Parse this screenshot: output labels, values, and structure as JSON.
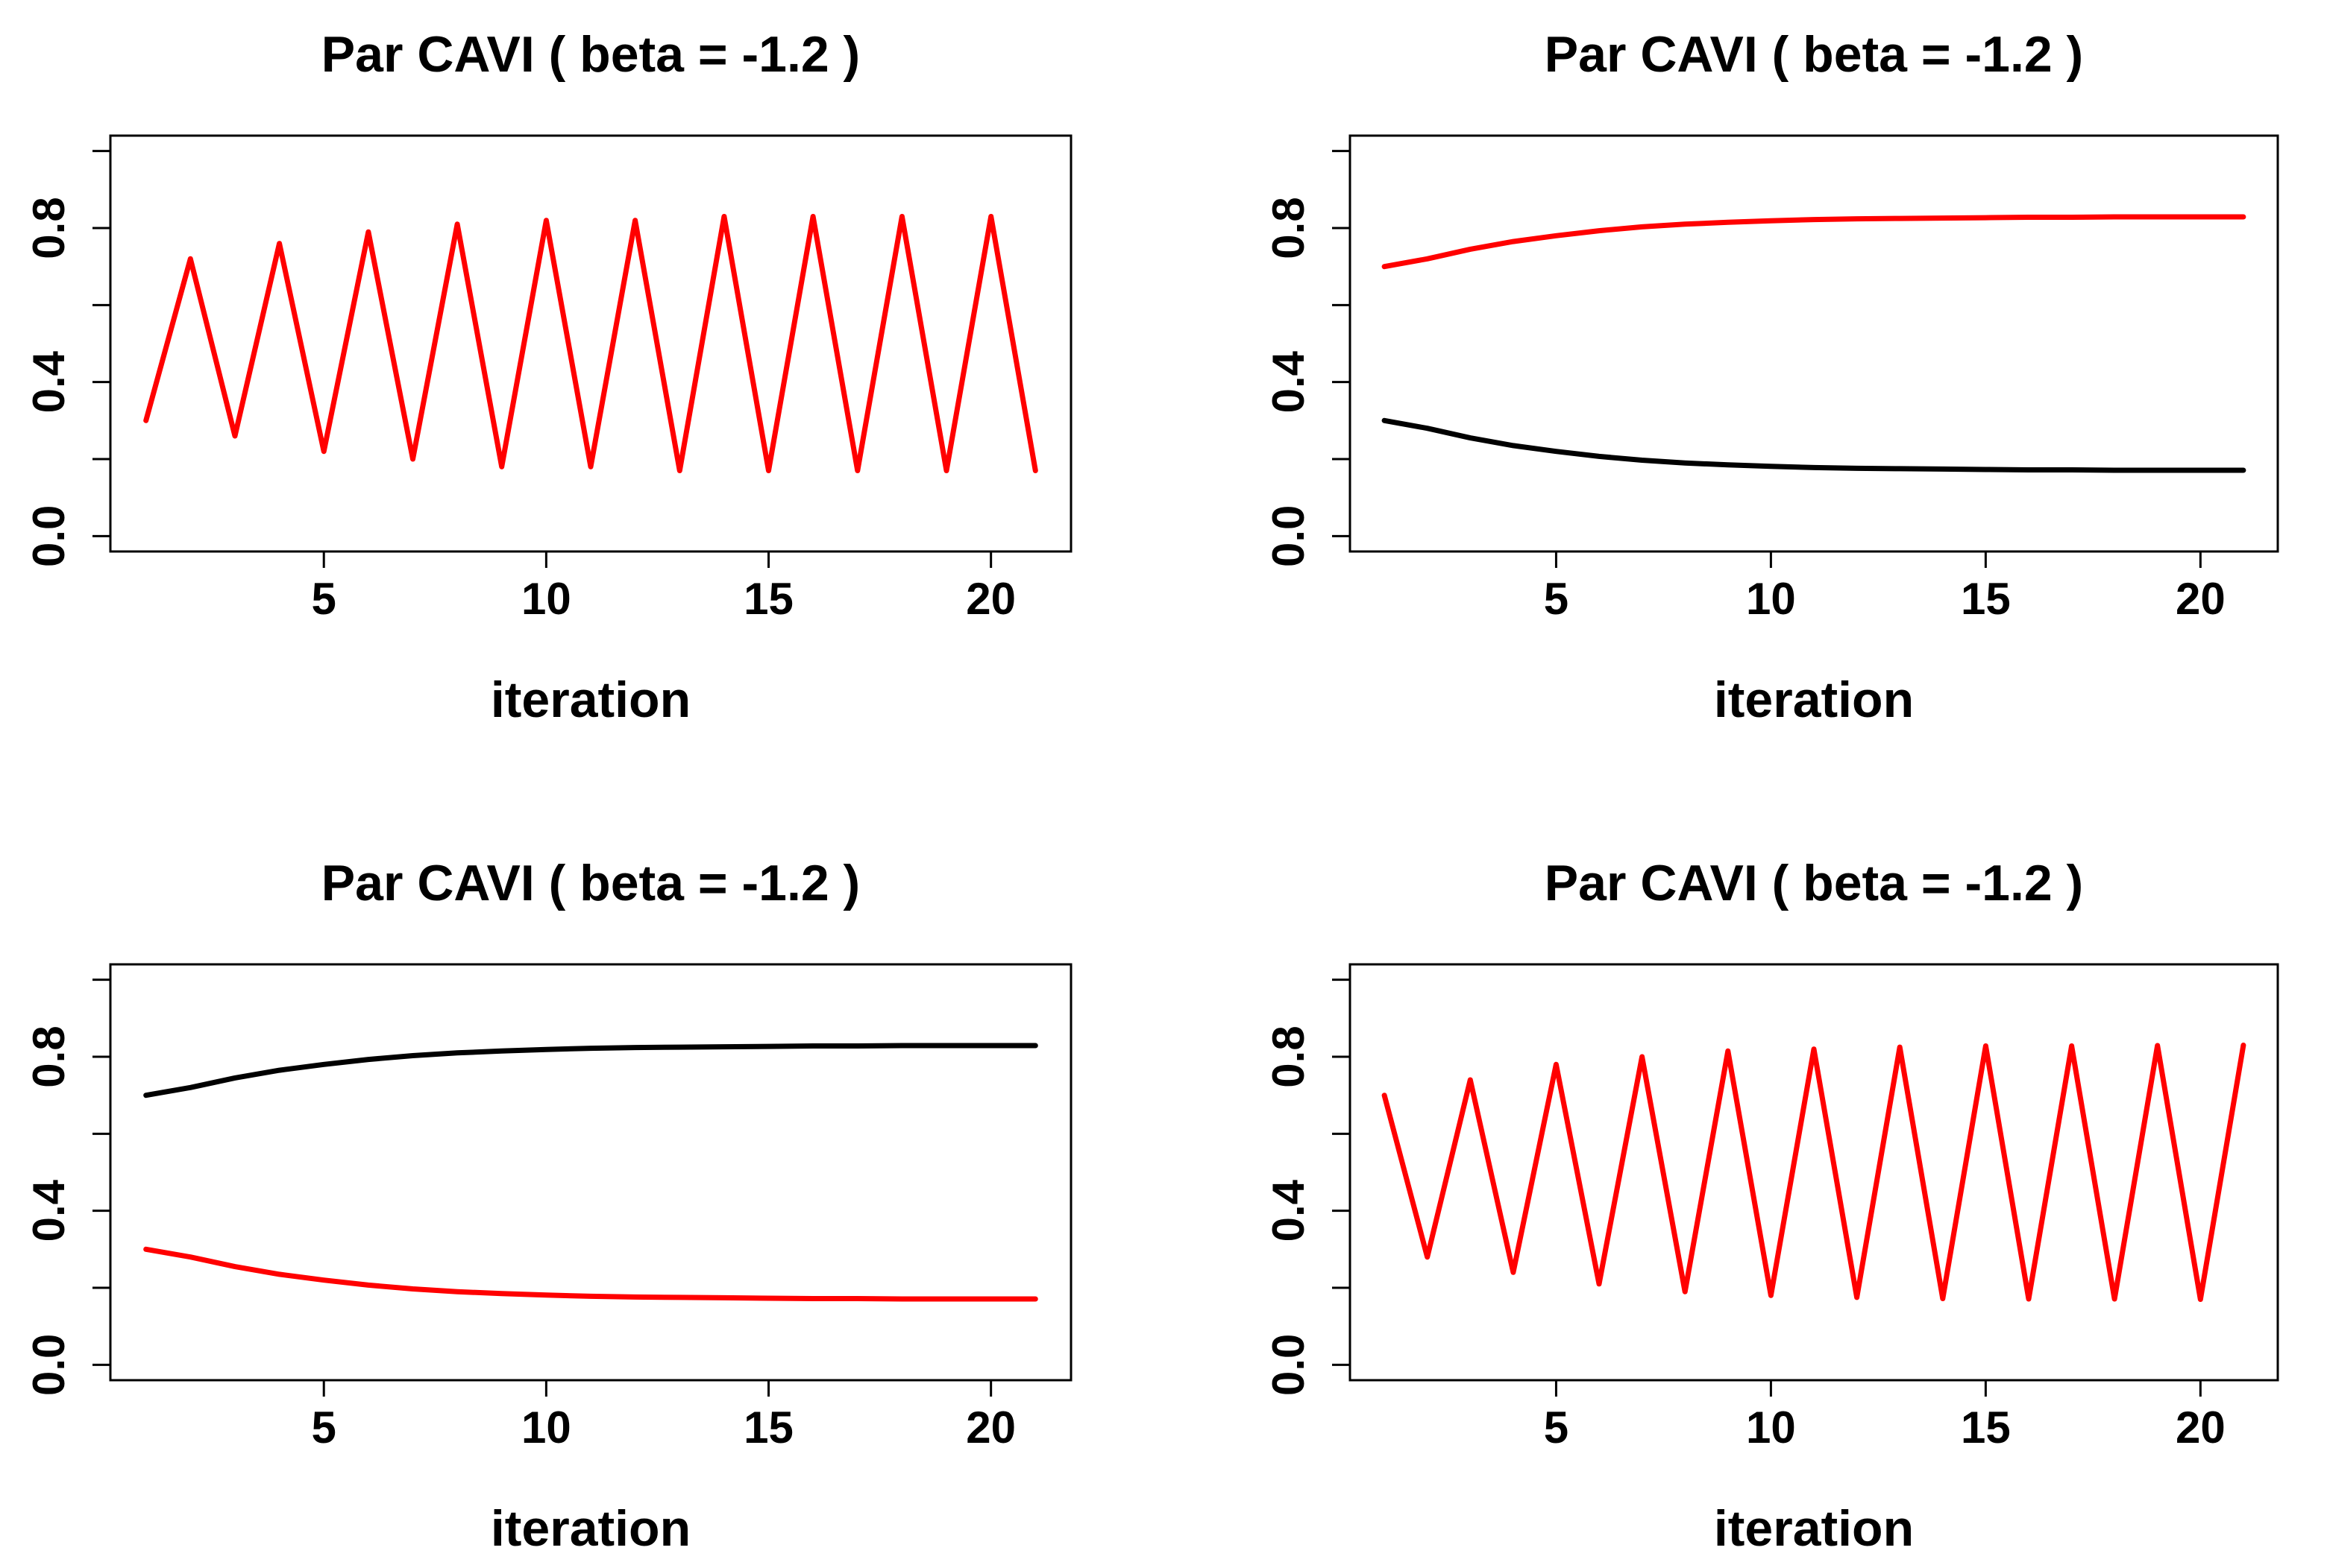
{
  "chart_data": [
    {
      "type": "line",
      "title": "Par CAVI ( beta =  -1.2 )",
      "xlabel": "iteration",
      "ylabel": "",
      "xlim": [
        0.2,
        21.8
      ],
      "ylim": [
        -0.04,
        1.04
      ],
      "x_ticks": [
        5,
        10,
        15,
        20
      ],
      "y_ticks": [
        0.0,
        0.4,
        0.8
      ],
      "y_minor_ticks": [
        0.0,
        0.2,
        0.4,
        0.6,
        0.8,
        1.0
      ],
      "x": [
        1,
        2,
        3,
        4,
        5,
        6,
        7,
        8,
        9,
        10,
        11,
        12,
        13,
        14,
        15,
        16,
        17,
        18,
        19,
        20,
        21
      ],
      "series": [
        {
          "color": "#ff0000",
          "values": [
            0.3,
            0.72,
            0.26,
            0.76,
            0.22,
            0.79,
            0.2,
            0.81,
            0.18,
            0.82,
            0.18,
            0.82,
            0.17,
            0.83,
            0.17,
            0.83,
            0.17,
            0.83,
            0.17,
            0.83,
            0.17
          ]
        }
      ]
    },
    {
      "type": "line",
      "title": "Par CAVI ( beta =  -1.2 )",
      "xlabel": "iteration",
      "ylabel": "",
      "xlim": [
        0.2,
        21.8
      ],
      "ylim": [
        -0.04,
        1.04
      ],
      "x_ticks": [
        5,
        10,
        15,
        20
      ],
      "y_ticks": [
        0.0,
        0.4,
        0.8
      ],
      "y_minor_ticks": [
        0.0,
        0.2,
        0.4,
        0.6,
        0.8,
        1.0
      ],
      "x": [
        1,
        2,
        3,
        4,
        5,
        6,
        7,
        8,
        9,
        10,
        11,
        12,
        13,
        14,
        15,
        16,
        17,
        18,
        19,
        20,
        21
      ],
      "series": [
        {
          "color": "#ff0000",
          "values": [
            0.7,
            0.72,
            0.745,
            0.765,
            0.78,
            0.793,
            0.803,
            0.81,
            0.815,
            0.819,
            0.822,
            0.824,
            0.825,
            0.826,
            0.827,
            0.828,
            0.828,
            0.829,
            0.829,
            0.829,
            0.829
          ]
        },
        {
          "color": "#000000",
          "values": [
            0.3,
            0.28,
            0.255,
            0.235,
            0.22,
            0.207,
            0.197,
            0.19,
            0.185,
            0.181,
            0.178,
            0.176,
            0.175,
            0.174,
            0.173,
            0.172,
            0.172,
            0.171,
            0.171,
            0.171,
            0.171
          ]
        }
      ]
    },
    {
      "type": "line",
      "title": "Par CAVI ( beta =  -1.2 )",
      "xlabel": "iteration",
      "ylabel": "",
      "xlim": [
        0.2,
        21.8
      ],
      "ylim": [
        -0.04,
        1.04
      ],
      "x_ticks": [
        5,
        10,
        15,
        20
      ],
      "y_ticks": [
        0.0,
        0.4,
        0.8
      ],
      "y_minor_ticks": [
        0.0,
        0.2,
        0.4,
        0.6,
        0.8,
        1.0
      ],
      "x": [
        1,
        2,
        3,
        4,
        5,
        6,
        7,
        8,
        9,
        10,
        11,
        12,
        13,
        14,
        15,
        16,
        17,
        18,
        19,
        20,
        21
      ],
      "series": [
        {
          "color": "#000000",
          "values": [
            0.7,
            0.72,
            0.745,
            0.765,
            0.78,
            0.793,
            0.803,
            0.81,
            0.815,
            0.819,
            0.822,
            0.824,
            0.825,
            0.826,
            0.827,
            0.828,
            0.828,
            0.829,
            0.829,
            0.829,
            0.829
          ]
        },
        {
          "color": "#ff0000",
          "values": [
            0.3,
            0.28,
            0.255,
            0.235,
            0.22,
            0.207,
            0.197,
            0.19,
            0.185,
            0.181,
            0.178,
            0.176,
            0.175,
            0.174,
            0.173,
            0.172,
            0.172,
            0.171,
            0.171,
            0.171,
            0.171
          ]
        }
      ]
    },
    {
      "type": "line",
      "title": "Par CAVI ( beta =  -1.2 )",
      "xlabel": "iteration",
      "ylabel": "",
      "xlim": [
        0.2,
        21.8
      ],
      "ylim": [
        -0.04,
        1.04
      ],
      "x_ticks": [
        5,
        10,
        15,
        20
      ],
      "y_ticks": [
        0.0,
        0.4,
        0.8
      ],
      "y_minor_ticks": [
        0.0,
        0.2,
        0.4,
        0.6,
        0.8,
        1.0
      ],
      "x": [
        1,
        2,
        3,
        4,
        5,
        6,
        7,
        8,
        9,
        10,
        11,
        12,
        13,
        14,
        15,
        16,
        17,
        18,
        19,
        20,
        21
      ],
      "series": [
        {
          "color": "#ff0000",
          "values": [
            0.7,
            0.28,
            0.74,
            0.24,
            0.78,
            0.21,
            0.8,
            0.19,
            0.815,
            0.18,
            0.82,
            0.175,
            0.825,
            0.172,
            0.828,
            0.171,
            0.828,
            0.171,
            0.829,
            0.17,
            0.83
          ]
        }
      ]
    }
  ]
}
